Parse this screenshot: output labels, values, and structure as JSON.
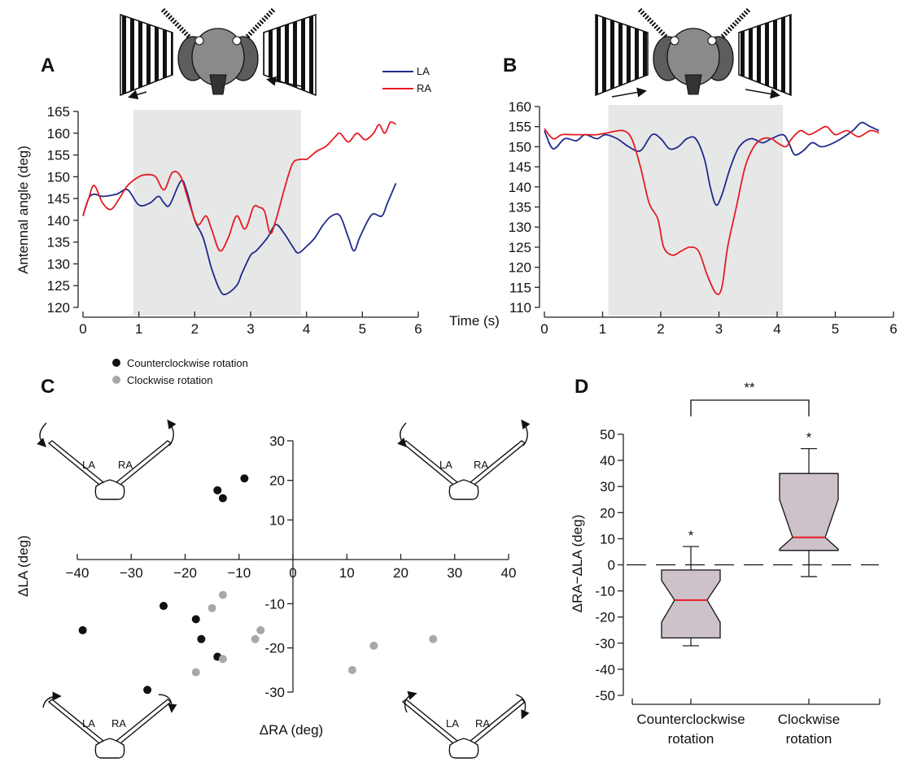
{
  "panels": {
    "a": "A",
    "b": "B",
    "c": "C",
    "d": "D"
  },
  "colors": {
    "LA": "#1f2a8c",
    "RA": "#e51c23",
    "shade": "#e6e8e8",
    "ccw": "#111111",
    "cw": "#a8a8a8",
    "box": "#cdc2c9",
    "median": "#e51c23"
  },
  "icons": [
    "bee-head-icon",
    "striped-drum-icon",
    "rotation-arrow-icon",
    "antennae-diagram-icon"
  ],
  "shared_x_label": "Time (s)",
  "chart_data": [
    {
      "id": "A",
      "type": "line",
      "xlabel": "",
      "ylabel": "Antennal angle (deg)",
      "xlim": [
        0,
        6
      ],
      "ylim": [
        120,
        165
      ],
      "x_ticks": [
        "0",
        "1",
        "2",
        "3",
        "4",
        "5",
        "6"
      ],
      "y_ticks": [
        "120",
        "125",
        "130",
        "135",
        "140",
        "145",
        "150",
        "155",
        "160",
        "165"
      ],
      "shaded": [
        0.9,
        3.9
      ],
      "legend": {
        "LA": "LA",
        "RA": "RA"
      },
      "series": [
        {
          "name": "LA",
          "points": [
            [
              0,
              141
            ],
            [
              0.1,
              145
            ],
            [
              0.2,
              146
            ],
            [
              0.35,
              145.5
            ],
            [
              0.6,
              146
            ],
            [
              0.8,
              147
            ],
            [
              1.0,
              143.5
            ],
            [
              1.2,
              144
            ],
            [
              1.35,
              145.5
            ],
            [
              1.45,
              144
            ],
            [
              1.55,
              143.5
            ],
            [
              1.75,
              149
            ],
            [
              1.85,
              147
            ],
            [
              2.0,
              140
            ],
            [
              2.15,
              136
            ],
            [
              2.3,
              129
            ],
            [
              2.45,
              124
            ],
            [
              2.55,
              123
            ],
            [
              2.75,
              125
            ],
            [
              2.85,
              128
            ],
            [
              3.0,
              132
            ],
            [
              3.1,
              133
            ],
            [
              3.3,
              136
            ],
            [
              3.45,
              139
            ],
            [
              3.6,
              137
            ],
            [
              3.75,
              134
            ],
            [
              3.85,
              132.5
            ],
            [
              4.0,
              134
            ],
            [
              4.15,
              136
            ],
            [
              4.3,
              139
            ],
            [
              4.45,
              141
            ],
            [
              4.6,
              141
            ],
            [
              4.75,
              136
            ],
            [
              4.85,
              133
            ],
            [
              4.95,
              136
            ],
            [
              5.1,
              140
            ],
            [
              5.2,
              141.5
            ],
            [
              5.35,
              141
            ],
            [
              5.45,
              144
            ],
            [
              5.6,
              148.5
            ]
          ]
        },
        {
          "name": "RA",
          "points": [
            [
              0,
              141
            ],
            [
              0.1,
              145
            ],
            [
              0.2,
              148
            ],
            [
              0.35,
              144
            ],
            [
              0.5,
              142.5
            ],
            [
              0.65,
              145
            ],
            [
              0.8,
              148
            ],
            [
              1.0,
              150
            ],
            [
              1.15,
              150.5
            ],
            [
              1.3,
              150
            ],
            [
              1.45,
              147
            ],
            [
              1.6,
              151
            ],
            [
              1.75,
              150
            ],
            [
              1.9,
              144
            ],
            [
              2.05,
              139
            ],
            [
              2.2,
              141
            ],
            [
              2.3,
              138
            ],
            [
              2.45,
              133
            ],
            [
              2.6,
              136
            ],
            [
              2.75,
              141
            ],
            [
              2.9,
              138
            ],
            [
              3.05,
              143
            ],
            [
              3.15,
              143
            ],
            [
              3.25,
              142
            ],
            [
              3.35,
              137
            ],
            [
              3.45,
              140
            ],
            [
              3.6,
              147
            ],
            [
              3.75,
              153
            ],
            [
              3.9,
              154
            ],
            [
              4.0,
              154
            ],
            [
              4.1,
              155
            ],
            [
              4.2,
              156
            ],
            [
              4.35,
              157
            ],
            [
              4.5,
              159
            ],
            [
              4.6,
              160
            ],
            [
              4.75,
              158
            ],
            [
              4.9,
              160
            ],
            [
              5.05,
              158.5
            ],
            [
              5.2,
              160
            ],
            [
              5.3,
              162
            ],
            [
              5.4,
              160
            ],
            [
              5.5,
              162.5
            ],
            [
              5.6,
              162
            ]
          ]
        }
      ]
    },
    {
      "id": "B",
      "type": "line",
      "xlabel": "",
      "ylabel": "",
      "xlim": [
        0,
        6
      ],
      "ylim": [
        110,
        160
      ],
      "x_ticks": [
        "0",
        "1",
        "2",
        "3",
        "4",
        "5",
        "6"
      ],
      "y_ticks": [
        "110",
        "115",
        "120",
        "125",
        "130",
        "135",
        "140",
        "145",
        "150",
        "155",
        "160"
      ],
      "shaded": [
        1.1,
        4.1
      ],
      "series": [
        {
          "name": "LA",
          "points": [
            [
              0,
              154
            ],
            [
              0.15,
              149.5
            ],
            [
              0.35,
              152
            ],
            [
              0.55,
              151.5
            ],
            [
              0.7,
              153
            ],
            [
              0.9,
              152
            ],
            [
              1.05,
              153
            ],
            [
              1.25,
              152
            ],
            [
              1.45,
              150
            ],
            [
              1.65,
              149
            ],
            [
              1.85,
              153
            ],
            [
              2.0,
              152
            ],
            [
              2.15,
              149.5
            ],
            [
              2.3,
              150
            ],
            [
              2.45,
              152
            ],
            [
              2.6,
              152
            ],
            [
              2.75,
              147
            ],
            [
              2.85,
              140
            ],
            [
              2.95,
              135.5
            ],
            [
              3.05,
              138
            ],
            [
              3.2,
              145
            ],
            [
              3.35,
              150
            ],
            [
              3.55,
              152
            ],
            [
              3.75,
              151
            ],
            [
              3.9,
              152
            ],
            [
              4.1,
              153
            ],
            [
              4.2,
              151
            ],
            [
              4.3,
              148
            ],
            [
              4.45,
              149
            ],
            [
              4.6,
              151
            ],
            [
              4.75,
              150
            ],
            [
              4.9,
              150.5
            ],
            [
              5.1,
              152
            ],
            [
              5.3,
              154
            ],
            [
              5.45,
              156
            ],
            [
              5.6,
              155
            ],
            [
              5.75,
              154
            ]
          ]
        },
        {
          "name": "RA",
          "points": [
            [
              0,
              154.5
            ],
            [
              0.15,
              152
            ],
            [
              0.3,
              153
            ],
            [
              0.5,
              153
            ],
            [
              0.7,
              153
            ],
            [
              0.9,
              153
            ],
            [
              1.1,
              153.5
            ],
            [
              1.35,
              154
            ],
            [
              1.5,
              152
            ],
            [
              1.65,
              145
            ],
            [
              1.8,
              136
            ],
            [
              1.95,
              132
            ],
            [
              2.05,
              125
            ],
            [
              2.2,
              123
            ],
            [
              2.35,
              124
            ],
            [
              2.5,
              125
            ],
            [
              2.65,
              124
            ],
            [
              2.8,
              118
            ],
            [
              2.95,
              113.5
            ],
            [
              3.05,
              115
            ],
            [
              3.15,
              125
            ],
            [
              3.3,
              135
            ],
            [
              3.45,
              145
            ],
            [
              3.6,
              150
            ],
            [
              3.75,
              152
            ],
            [
              3.9,
              152
            ],
            [
              4.0,
              151
            ],
            [
              4.15,
              150
            ],
            [
              4.25,
              152
            ],
            [
              4.4,
              154
            ],
            [
              4.55,
              153
            ],
            [
              4.7,
              154
            ],
            [
              4.85,
              155
            ],
            [
              5.0,
              153
            ],
            [
              5.2,
              154
            ],
            [
              5.4,
              152.5
            ],
            [
              5.6,
              154
            ],
            [
              5.75,
              153.5
            ]
          ]
        }
      ]
    },
    {
      "id": "C",
      "type": "scatter",
      "xlabel": "ΔRA (deg)",
      "ylabel": "ΔLA (deg)",
      "xlim": [
        -40,
        40
      ],
      "ylim": [
        -30,
        30
      ],
      "x_ticks": [
        "−40",
        "−30",
        "−20",
        "−10",
        "0",
        "10",
        "20",
        "30",
        "40"
      ],
      "y_ticks": [
        "30",
        "20",
        "10",
        "-10",
        "-20",
        "-30"
      ],
      "legend": [
        "Counterclockwise rotation",
        "Clockwise rotation"
      ],
      "antenna_labels": {
        "la": "LA",
        "ra": "RA"
      },
      "series": [
        {
          "name": "Counterclockwise rotation",
          "points": [
            [
              -9,
              20.5
            ],
            [
              -14,
              17.5
            ],
            [
              -13,
              15.5
            ],
            [
              -24,
              -10.5
            ],
            [
              -18,
              -13.5
            ],
            [
              -17,
              -18
            ],
            [
              -14,
              -22
            ],
            [
              -39,
              -16
            ],
            [
              -27,
              -29.5
            ]
          ]
        },
        {
          "name": "Clockwise rotation",
          "points": [
            [
              -13,
              -8
            ],
            [
              -15,
              -11
            ],
            [
              -6,
              -16
            ],
            [
              -7,
              -18
            ],
            [
              -13,
              -22.5
            ],
            [
              -18,
              -25.5
            ],
            [
              15,
              -19.5
            ],
            [
              26,
              -18
            ],
            [
              11,
              -25
            ]
          ]
        }
      ]
    },
    {
      "id": "D",
      "type": "box",
      "ylabel": "ΔRA−ΔLA (deg)",
      "ylim": [
        -50,
        50
      ],
      "y_ticks": [
        "50",
        "40",
        "30",
        "20",
        "10",
        "0",
        "-10",
        "-20",
        "-30",
        "-40",
        "-50"
      ],
      "significance": {
        "between": "**",
        "ccw": "*",
        "cw": "*"
      },
      "boxes": [
        {
          "label_line1": "Counterclockwise",
          "label_line2": "rotation",
          "whisker_low": -31,
          "q1": -28,
          "median": -13.5,
          "q3": -2,
          "whisker_high": 7,
          "notch_low": -22,
          "notch_high": -6
        },
        {
          "label_line1": "Clockwise",
          "label_line2": "rotation",
          "whisker_low": -4.5,
          "q1": 5.5,
          "median": 10.5,
          "q3": 35,
          "whisker_high": 44.5,
          "notch_low": 6,
          "notch_high": 25
        }
      ]
    }
  ]
}
